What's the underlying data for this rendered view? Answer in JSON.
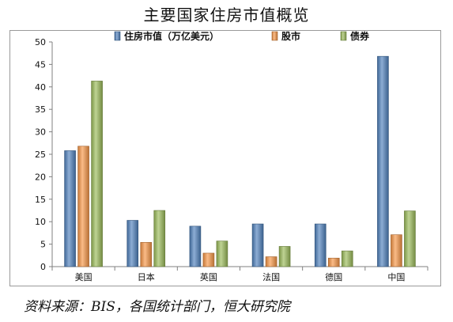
{
  "chart_data": {
    "type": "bar",
    "title": "主要国家住房市值概览",
    "categories": [
      "美国",
      "日本",
      "英国",
      "法国",
      "德国",
      "中国"
    ],
    "series": [
      {
        "name": "住房市值（万亿美元）",
        "color": "#4f81bd",
        "values": [
          25.8,
          10.3,
          9.0,
          9.5,
          9.5,
          46.8
        ]
      },
      {
        "name": "股市",
        "color": "#f79646",
        "values": [
          26.8,
          5.4,
          3.0,
          2.2,
          1.9,
          7.1
        ]
      },
      {
        "name": "债券",
        "color": "#9bbb59",
        "values": [
          41.3,
          12.5,
          5.7,
          4.5,
          3.5,
          12.4
        ]
      }
    ],
    "ylim": [
      0,
      50
    ],
    "yticks": [
      "0",
      "5",
      "10",
      "15",
      "20",
      "25",
      "30",
      "35",
      "40",
      "45",
      "50"
    ],
    "legend_position": "top-center",
    "grid": false
  },
  "source": "资料来源：BIS，各国统计部门，恒大研究院"
}
